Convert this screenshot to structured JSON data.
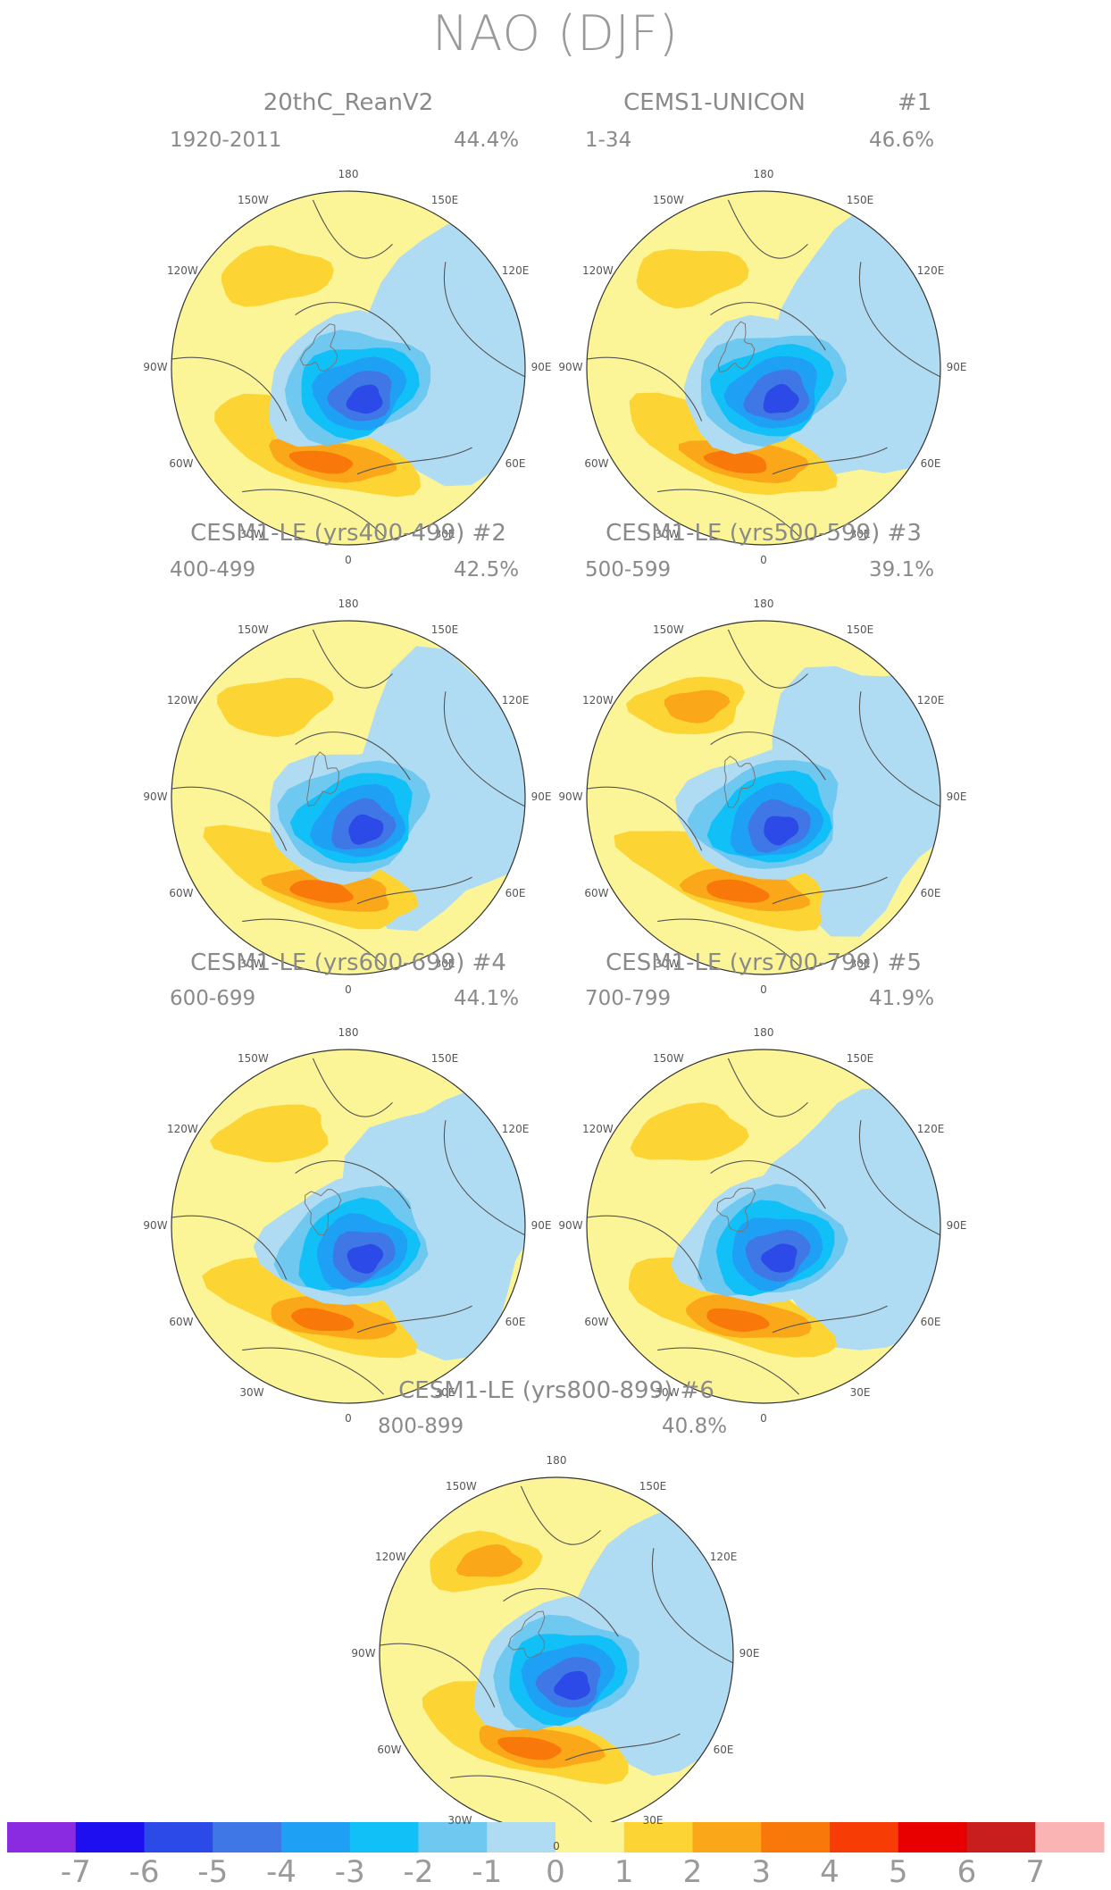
{
  "title": "NAO (DJF)",
  "panels": [
    {
      "title": "20thC_ReanV2",
      "id_label": "",
      "years": "1920-2011",
      "variance": "44.4%"
    },
    {
      "title": "CEMS1-UNICON",
      "id_label": "#1",
      "years": "1-34",
      "variance": "46.6%"
    },
    {
      "title": "CESM1-LE (yrs400-499) #2",
      "id_label": "",
      "years": "400-499",
      "variance": "42.5%"
    },
    {
      "title": "CESM1-LE (yrs500-599) #3",
      "id_label": "",
      "years": "500-599",
      "variance": "39.1%"
    },
    {
      "title": "CESM1-LE (yrs600-699) #4",
      "id_label": "",
      "years": "600-699",
      "variance": "44.1%"
    },
    {
      "title": "CESM1-LE (yrs700-799) #5",
      "id_label": "",
      "years": "700-799",
      "variance": "41.9%"
    },
    {
      "title": "CESM1-LE (yrs800-899) #6",
      "id_label": "",
      "years": "800-899",
      "variance": "40.8%"
    }
  ],
  "lon_labels": [
    "180",
    "150E",
    "120E",
    "90E",
    "60E",
    "30E",
    "0",
    "30W",
    "60W",
    "90W",
    "120W",
    "150W"
  ],
  "colorbar": {
    "labels": [
      "-7",
      "-6",
      "-5",
      "-4",
      "-3",
      "-2",
      "-1",
      "0",
      "1",
      "2",
      "3",
      "4",
      "5",
      "6",
      "7"
    ],
    "colors": [
      "#8a2be2",
      "#1e0ff0",
      "#2b4ae8",
      "#3f78e6",
      "#1ea0f5",
      "#12c0f8",
      "#6fc8f0",
      "#b0dcf3",
      "#fbf597",
      "#fcd535",
      "#faa719",
      "#f9780a",
      "#f83c05",
      "#e80000",
      "#c81e1e",
      "#fbb4b4"
    ]
  },
  "map_colors": {
    "neg1": "#b0dcf3",
    "neg2": "#6fc8f0",
    "neg3": "#12c0f8",
    "neg4": "#1ea0f5",
    "neg5": "#3f78e6",
    "neg6": "#2b4ae8",
    "neg7": "#1e0ff0",
    "pos0": "#fbf597",
    "pos1": "#fcd535",
    "pos2": "#faa719",
    "pos3": "#f9780a"
  }
}
